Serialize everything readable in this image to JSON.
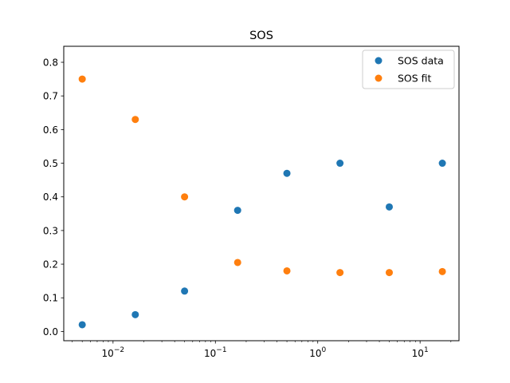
{
  "chart_data": {
    "type": "scatter",
    "title": "SOS",
    "xlabel": "",
    "ylabel": "",
    "xscale": "log",
    "xlim": [
      0.0033,
      24.0
    ],
    "ylim": [
      -0.0275,
      0.8475
    ],
    "x_major_ticks": [
      0.01,
      0.1,
      1,
      10
    ],
    "x_tick_labels": [
      {
        "base": "10",
        "exp": "−2"
      },
      {
        "base": "10",
        "exp": "−1"
      },
      {
        "base": "10",
        "exp": "0"
      },
      {
        "base": "10",
        "exp": "1"
      }
    ],
    "y_ticks": [
      0.0,
      0.1,
      0.2,
      0.3,
      0.4,
      0.5,
      0.6,
      0.7,
      0.8
    ],
    "y_tick_labels": [
      "0.0",
      "0.1",
      "0.2",
      "0.3",
      "0.4",
      "0.5",
      "0.6",
      "0.7",
      "0.8"
    ],
    "grid": false,
    "legend_position": "top-right",
    "x": [
      0.005,
      0.0165,
      0.05,
      0.165,
      0.5,
      1.65,
      5.0,
      16.5
    ],
    "series": [
      {
        "name": "SOS data",
        "color": "#1f77b4",
        "values": [
          0.02,
          0.05,
          0.12,
          0.36,
          0.47,
          0.5,
          0.37,
          0.5
        ]
      },
      {
        "name": "SOS fit",
        "color": "#ff7f0e",
        "values": [
          0.75,
          0.63,
          0.4,
          0.205,
          0.18,
          0.175,
          0.175,
          0.178
        ]
      }
    ]
  }
}
